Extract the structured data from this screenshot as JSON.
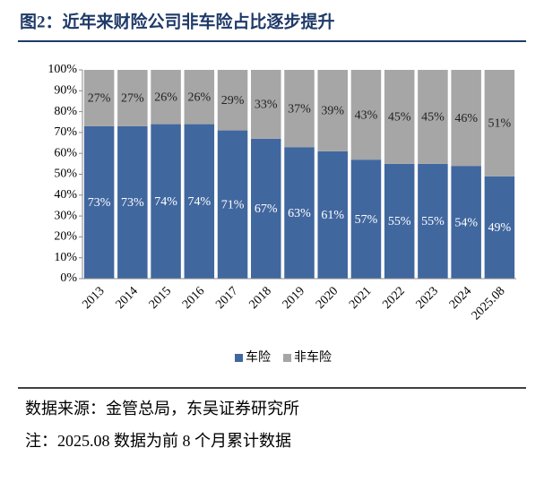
{
  "chart_data": {
    "type": "stacked-bar",
    "title": "图2：近年来财险公司非车险占比逐步提升",
    "categories": [
      "2013",
      "2014",
      "2015",
      "2016",
      "2017",
      "2018",
      "2019",
      "2020",
      "2021",
      "2022",
      "2023",
      "2024",
      "2025.08"
    ],
    "series": [
      {
        "name": "车险",
        "color": "#41679f",
        "values": [
          73,
          73,
          74,
          74,
          71,
          67,
          63,
          61,
          57,
          55,
          55,
          54,
          49
        ],
        "value_labels": [
          "73%",
          "73%",
          "74%",
          "74%",
          "71%",
          "67%",
          "63%",
          "61%",
          "57%",
          "55%",
          "55%",
          "54%",
          "49%"
        ]
      },
      {
        "name": "非车险",
        "color": "#a6a6a6",
        "values": [
          27,
          27,
          26,
          26,
          29,
          33,
          37,
          39,
          43,
          45,
          45,
          46,
          51
        ],
        "value_labels": [
          "27%",
          "27%",
          "26%",
          "26%",
          "29%",
          "33%",
          "37%",
          "39%",
          "43%",
          "45%",
          "45%",
          "46%",
          "51%"
        ]
      }
    ],
    "ylim": [
      0,
      100
    ],
    "yticks": [
      {
        "value": 0,
        "label": "0%"
      },
      {
        "value": 10,
        "label": "10%"
      },
      {
        "value": 20,
        "label": "20%"
      },
      {
        "value": 30,
        "label": "30%"
      },
      {
        "value": 40,
        "label": "40%"
      },
      {
        "value": 50,
        "label": "50%"
      },
      {
        "value": 60,
        "label": "60%"
      },
      {
        "value": 70,
        "label": "70%"
      },
      {
        "value": 80,
        "label": "80%"
      },
      {
        "value": 90,
        "label": "90%"
      },
      {
        "value": 100,
        "label": "100%"
      }
    ],
    "legend": "bottom",
    "source": "数据来源：金管总局，东吴证券研究所",
    "note": "注：2025.08 数据为前 8 个月累计数据"
  }
}
